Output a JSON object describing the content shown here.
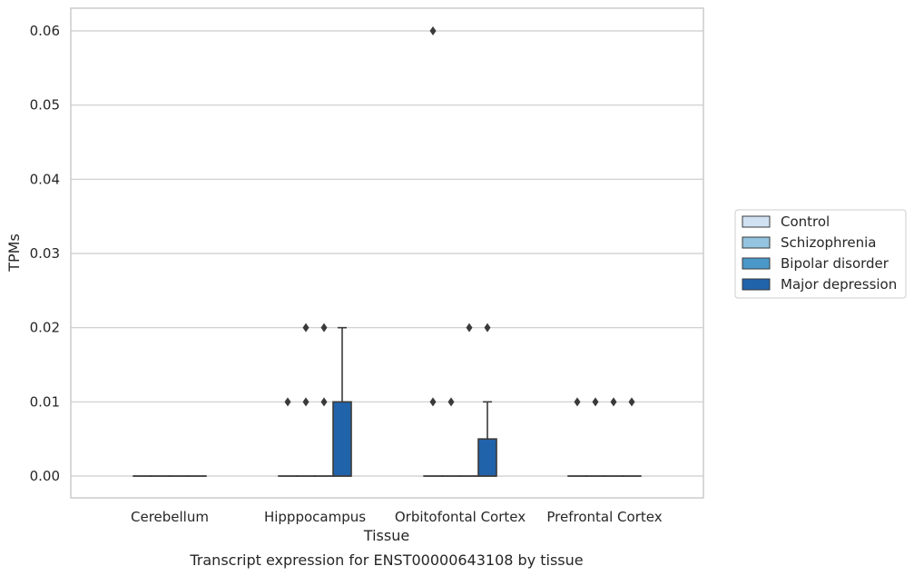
{
  "chart_data": {
    "type": "box",
    "title": "",
    "caption": "Transcript expression for ENST00000643108 by tissue",
    "xlabel": "Tissue",
    "ylabel": "TPMs",
    "ylim": [
      -0.003,
      0.063
    ],
    "yticks": [
      "0.00",
      "0.01",
      "0.02",
      "0.03",
      "0.04",
      "0.05",
      "0.06"
    ],
    "grid": true,
    "legend_position": "right",
    "categories": [
      "Cerebellum",
      "Hipppocampus",
      "Orbitofontal Cortex",
      "Prefrontal Cortex"
    ],
    "series": [
      {
        "name": "Control",
        "color": "#d0e1f2",
        "boxes": [
          {
            "category": "Cerebellum",
            "q1": 0,
            "median": 0,
            "q3": 0,
            "whisker_low": 0,
            "whisker_high": 0,
            "outliers": []
          },
          {
            "category": "Hipppocampus",
            "q1": 0,
            "median": 0,
            "q3": 0,
            "whisker_low": 0,
            "whisker_high": 0,
            "outliers": [
              0.01
            ]
          },
          {
            "category": "Orbitofontal Cortex",
            "q1": 0,
            "median": 0,
            "q3": 0,
            "whisker_low": 0,
            "whisker_high": 0,
            "outliers": [
              0.01,
              0.06
            ]
          },
          {
            "category": "Prefrontal Cortex",
            "q1": 0,
            "median": 0,
            "q3": 0,
            "whisker_low": 0,
            "whisker_high": 0,
            "outliers": [
              0.01
            ]
          }
        ]
      },
      {
        "name": "Schizophrenia",
        "color": "#94c4df",
        "boxes": [
          {
            "category": "Cerebellum",
            "q1": 0,
            "median": 0,
            "q3": 0,
            "whisker_low": 0,
            "whisker_high": 0,
            "outliers": []
          },
          {
            "category": "Hipppocampus",
            "q1": 0,
            "median": 0,
            "q3": 0,
            "whisker_low": 0,
            "whisker_high": 0,
            "outliers": [
              0.01,
              0.02
            ]
          },
          {
            "category": "Orbitofontal Cortex",
            "q1": 0,
            "median": 0,
            "q3": 0,
            "whisker_low": 0,
            "whisker_high": 0,
            "outliers": [
              0.01
            ]
          },
          {
            "category": "Prefrontal Cortex",
            "q1": 0,
            "median": 0,
            "q3": 0,
            "whisker_low": 0,
            "whisker_high": 0,
            "outliers": [
              0.01
            ]
          }
        ]
      },
      {
        "name": "Bipolar disorder",
        "color": "#4a98c9",
        "boxes": [
          {
            "category": "Cerebellum",
            "q1": 0,
            "median": 0,
            "q3": 0,
            "whisker_low": 0,
            "whisker_high": 0,
            "outliers": []
          },
          {
            "category": "Hipppocampus",
            "q1": 0,
            "median": 0,
            "q3": 0,
            "whisker_low": 0,
            "whisker_high": 0,
            "outliers": [
              0.01,
              0.02
            ]
          },
          {
            "category": "Orbitofontal Cortex",
            "q1": 0,
            "median": 0,
            "q3": 0,
            "whisker_low": 0,
            "whisker_high": 0,
            "outliers": [
              0.02
            ]
          },
          {
            "category": "Prefrontal Cortex",
            "q1": 0,
            "median": 0,
            "q3": 0,
            "whisker_low": 0,
            "whisker_high": 0,
            "outliers": [
              0.01
            ]
          }
        ]
      },
      {
        "name": "Major depression",
        "color": "#2163aa",
        "boxes": [
          {
            "category": "Cerebellum",
            "q1": 0,
            "median": 0,
            "q3": 0,
            "whisker_low": 0,
            "whisker_high": 0,
            "outliers": []
          },
          {
            "category": "Hipppocampus",
            "q1": 0,
            "median": 0,
            "q3": 0.01,
            "whisker_low": 0,
            "whisker_high": 0.02,
            "outliers": []
          },
          {
            "category": "Orbitofontal Cortex",
            "q1": 0,
            "median": 0,
            "q3": 0.005,
            "whisker_low": 0,
            "whisker_high": 0.01,
            "outliers": [
              0.02
            ]
          },
          {
            "category": "Prefrontal Cortex",
            "q1": 0,
            "median": 0,
            "q3": 0,
            "whisker_low": 0,
            "whisker_high": 0,
            "outliers": [
              0.01
            ]
          }
        ]
      }
    ]
  }
}
